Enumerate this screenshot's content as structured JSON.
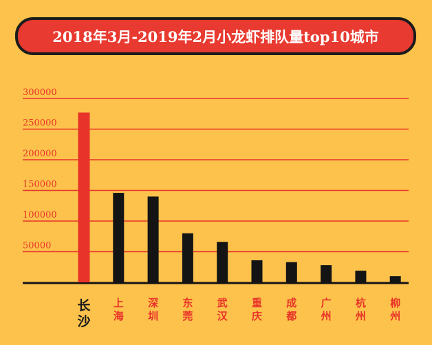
{
  "title": "2018年3月-2019年2月小龙虾排队量top10城市",
  "colors": {
    "background": "#fdc24b",
    "accent": "#e83a30",
    "bar": "#141414",
    "highlight_bar": "#e8332a",
    "gridline": "#e8332a"
  },
  "chart_data": {
    "type": "bar",
    "title": "2018年3月-2019年2月小龙虾排队量top10城市",
    "categories": [
      "长沙",
      "上海",
      "深圳",
      "东莞",
      "武汉",
      "重庆",
      "成都",
      "广州",
      "杭州",
      "柳州"
    ],
    "values": [
      277000,
      146000,
      140000,
      80000,
      66000,
      36000,
      33000,
      28000,
      19000,
      10000
    ],
    "highlight": "长沙",
    "ylim": [
      0,
      300000
    ],
    "yticks": [
      50000,
      100000,
      150000,
      200000,
      250000,
      300000
    ],
    "ytick_labels": [
      "50000",
      "100000",
      "150000",
      "200000",
      "250000",
      "300000"
    ],
    "xlabel": "",
    "ylabel": "",
    "grid": true,
    "legend": "none"
  }
}
